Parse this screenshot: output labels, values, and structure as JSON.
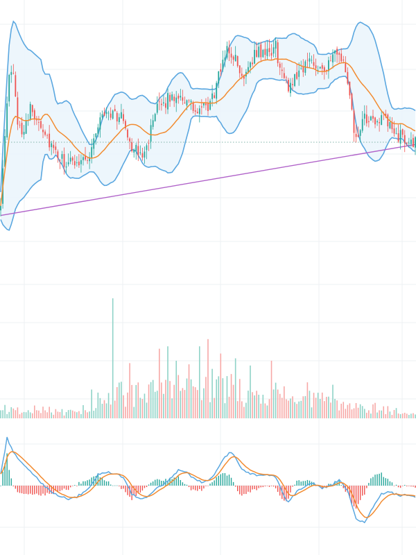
{
  "chart_data": [
    {
      "type": "candlestick",
      "panel": "price",
      "indicators": [
        "bollinger-bands",
        "moving-average",
        "trendline",
        "last-price-line"
      ],
      "x_start": 0,
      "x_end": 196,
      "ylim": [
        0,
        100
      ],
      "grid": true,
      "legend": "none",
      "price_anchor_points": [
        [
          0,
          25
        ],
        [
          2,
          50
        ],
        [
          4,
          80
        ],
        [
          6,
          78
        ],
        [
          8,
          60
        ],
        [
          10,
          55
        ],
        [
          14,
          64
        ],
        [
          18,
          60
        ],
        [
          22,
          52
        ],
        [
          26,
          44
        ],
        [
          32,
          40
        ],
        [
          36,
          42
        ],
        [
          42,
          44
        ],
        [
          46,
          58
        ],
        [
          50,
          64
        ],
        [
          54,
          62
        ],
        [
          58,
          60
        ],
        [
          62,
          48
        ],
        [
          66,
          44
        ],
        [
          70,
          52
        ],
        [
          74,
          64
        ],
        [
          78,
          68
        ],
        [
          84,
          71
        ],
        [
          88,
          68
        ],
        [
          92,
          63
        ],
        [
          98,
          65
        ],
        [
          102,
          74
        ],
        [
          106,
          90
        ],
        [
          110,
          88
        ],
        [
          114,
          78
        ],
        [
          118,
          86
        ],
        [
          122,
          90
        ],
        [
          126,
          88
        ],
        [
          130,
          92
        ],
        [
          132,
          82
        ],
        [
          136,
          74
        ],
        [
          140,
          80
        ],
        [
          146,
          86
        ],
        [
          150,
          84
        ],
        [
          154,
          82
        ],
        [
          158,
          88
        ],
        [
          162,
          86
        ],
        [
          164,
          74
        ],
        [
          168,
          50
        ],
        [
          172,
          60
        ],
        [
          176,
          58
        ],
        [
          180,
          62
        ],
        [
          184,
          56
        ],
        [
          188,
          53
        ],
        [
          192,
          51
        ],
        [
          196,
          50
        ]
      ],
      "last_price": 50,
      "trendline": {
        "x": [
          0,
          196
        ],
        "y": [
          18,
          49
        ]
      },
      "candle_up_color": "#26a69a",
      "candle_down_color": "#ef5350",
      "band_color": "#5aa7e0",
      "band_fill_color": "#eaf4fc",
      "ma_color": "#f28b30",
      "trendline_color": "#b062c9",
      "last_price_line_color": "#7fb3a8"
    },
    {
      "type": "bar",
      "panel": "volume",
      "ylim": [
        0,
        100
      ],
      "volume_anchor_points": [
        [
          0,
          10
        ],
        [
          10,
          8
        ],
        [
          20,
          9
        ],
        [
          30,
          6
        ],
        [
          40,
          10
        ],
        [
          50,
          22
        ],
        [
          54,
          30
        ],
        [
          60,
          26
        ],
        [
          70,
          24
        ],
        [
          80,
          32
        ],
        [
          90,
          30
        ],
        [
          100,
          34
        ],
        [
          110,
          30
        ],
        [
          120,
          24
        ],
        [
          130,
          26
        ],
        [
          140,
          20
        ],
        [
          150,
          18
        ],
        [
          160,
          15
        ],
        [
          170,
          12
        ],
        [
          180,
          10
        ],
        [
          190,
          6
        ],
        [
          196,
          4
        ]
      ],
      "volume_spikes": [
        [
          43,
          24
        ],
        [
          53,
          100
        ],
        [
          61,
          46
        ],
        [
          75,
          58
        ],
        [
          79,
          60
        ],
        [
          83,
          48
        ],
        [
          89,
          45
        ],
        [
          94,
          60
        ],
        [
          98,
          66
        ],
        [
          104,
          54
        ],
        [
          111,
          50
        ],
        [
          118,
          44
        ],
        [
          128,
          48
        ],
        [
          145,
          30
        ],
        [
          157,
          28
        ]
      ],
      "up_color": "#8fd3c7",
      "down_color": "#f7a8a6"
    },
    {
      "type": "line",
      "panel": "macd",
      "indicators": [
        "macd-line",
        "signal-line",
        "histogram"
      ],
      "ylim": [
        -100,
        100
      ],
      "macd_anchor_points": [
        [
          0,
          20
        ],
        [
          3,
          86
        ],
        [
          6,
          60
        ],
        [
          10,
          40
        ],
        [
          14,
          25
        ],
        [
          18,
          10
        ],
        [
          22,
          -5
        ],
        [
          26,
          -15
        ],
        [
          32,
          -25
        ],
        [
          36,
          -20
        ],
        [
          42,
          -5
        ],
        [
          46,
          20
        ],
        [
          50,
          25
        ],
        [
          54,
          22
        ],
        [
          58,
          15
        ],
        [
          62,
          -15
        ],
        [
          66,
          -25
        ],
        [
          70,
          -18
        ],
        [
          74,
          -5
        ],
        [
          78,
          5
        ],
        [
          84,
          28
        ],
        [
          88,
          24
        ],
        [
          92,
          10
        ],
        [
          96,
          5
        ],
        [
          100,
          15
        ],
        [
          104,
          40
        ],
        [
          108,
          60
        ],
        [
          110,
          55
        ],
        [
          114,
          30
        ],
        [
          118,
          22
        ],
        [
          122,
          18
        ],
        [
          126,
          20
        ],
        [
          130,
          15
        ],
        [
          134,
          -20
        ],
        [
          136,
          -30
        ],
        [
          140,
          -10
        ],
        [
          144,
          0
        ],
        [
          148,
          5
        ],
        [
          152,
          -5
        ],
        [
          156,
          0
        ],
        [
          160,
          10
        ],
        [
          164,
          -10
        ],
        [
          168,
          -60
        ],
        [
          172,
          -65
        ],
        [
          176,
          -40
        ],
        [
          180,
          -15
        ],
        [
          184,
          -10
        ],
        [
          188,
          -18
        ],
        [
          192,
          -17
        ],
        [
          196,
          -20
        ]
      ],
      "macd_color": "#5aa7e0",
      "signal_color": "#f28b30",
      "hist_up_color": "#26a69a",
      "hist_down_color": "#ef5350"
    }
  ]
}
